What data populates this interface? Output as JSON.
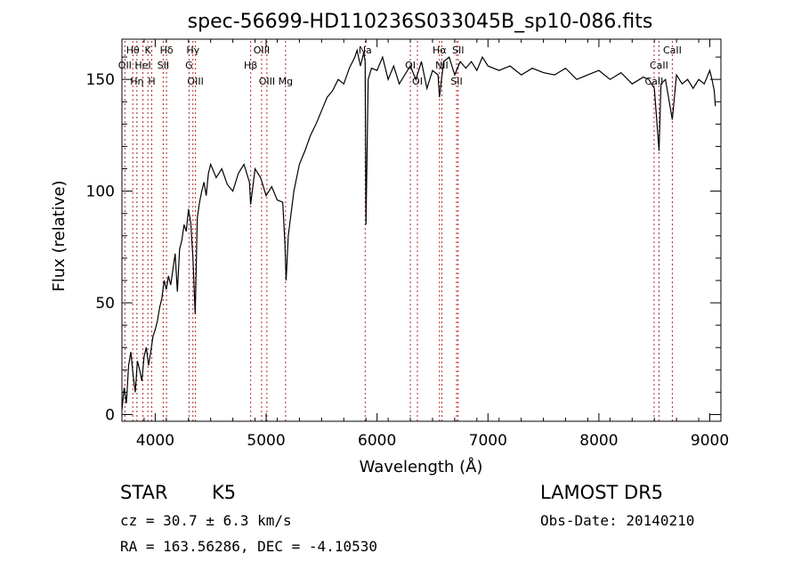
{
  "chart_data": {
    "type": "line",
    "title": "spec-56699-HD110236S033045B_sp10-086.fits",
    "xlabel": "Wavelength (Å)",
    "ylabel": "Flux (relative)",
    "xlim": [
      3700,
      9100
    ],
    "ylim": [
      -3,
      168
    ],
    "xticks": [
      4000,
      5000,
      6000,
      7000,
      8000,
      9000
    ],
    "yticks": [
      0,
      50,
      100,
      150
    ],
    "grid": false,
    "line_color": "#000000",
    "marker_color": "#b22222",
    "series": [
      {
        "x": [
          3700,
          3720,
          3740,
          3760,
          3780,
          3800,
          3820,
          3840,
          3860,
          3880,
          3900,
          3920,
          3940,
          3960,
          3980,
          4000,
          4020,
          4040,
          4060,
          4080,
          4100,
          4120,
          4140,
          4160,
          4180,
          4200,
          4220,
          4240,
          4260,
          4280,
          4300,
          4320,
          4340,
          4360,
          4380,
          4400,
          4420,
          4440,
          4460,
          4480,
          4500,
          4550,
          4600,
          4650,
          4700,
          4750,
          4800,
          4850,
          4860,
          4900,
          4950,
          5000,
          5050,
          5100,
          5150,
          5170,
          5180,
          5200,
          5250,
          5300,
          5350,
          5400,
          5450,
          5500,
          5550,
          5600,
          5650,
          5700,
          5750,
          5800,
          5820,
          5850,
          5880,
          5893,
          5900,
          5920,
          5950,
          6000,
          6050,
          6100,
          6150,
          6200,
          6250,
          6300,
          6350,
          6400,
          6450,
          6500,
          6550,
          6563,
          6600,
          6650,
          6700,
          6750,
          6800,
          6850,
          6900,
          6950,
          7000,
          7100,
          7200,
          7300,
          7400,
          7500,
          7600,
          7700,
          7800,
          7900,
          8000,
          8100,
          8200,
          8300,
          8400,
          8450,
          8500,
          8542,
          8560,
          8600,
          8662,
          8700,
          8750,
          8800,
          8850,
          8900,
          8950,
          9000,
          9020,
          9040,
          9050
        ],
        "y": [
          2,
          12,
          5,
          22,
          28,
          18,
          10,
          24,
          20,
          15,
          26,
          30,
          22,
          28,
          35,
          38,
          42,
          48,
          52,
          60,
          56,
          62,
          58,
          65,
          72,
          55,
          74,
          78,
          85,
          82,
          92,
          86,
          70,
          45,
          88,
          95,
          100,
          104,
          98,
          108,
          112,
          106,
          110,
          103,
          100,
          108,
          112,
          104,
          94,
          110,
          106,
          98,
          102,
          96,
          95,
          76,
          60,
          80,
          100,
          112,
          118,
          125,
          130,
          136,
          142,
          145,
          150,
          148,
          155,
          160,
          163,
          156,
          162,
          158,
          85,
          150,
          155,
          154,
          160,
          150,
          156,
          148,
          152,
          156,
          150,
          158,
          146,
          154,
          152,
          142,
          158,
          160,
          152,
          158,
          155,
          158,
          154,
          160,
          156,
          154,
          156,
          152,
          155,
          153,
          152,
          155,
          150,
          152,
          154,
          150,
          153,
          148,
          151,
          150,
          146,
          118,
          148,
          150,
          132,
          152,
          148,
          150,
          146,
          150,
          148,
          154,
          150,
          145,
          138
        ]
      }
    ],
    "lines": [
      {
        "name": "Hθ",
        "x": 3798
      },
      {
        "name": "OII",
        "x": 3727
      },
      {
        "name": "Hη",
        "x": 3835
      },
      {
        "name": "K",
        "x": 3934
      },
      {
        "name": "HeI",
        "x": 3889
      },
      {
        "name": "H",
        "x": 3969
      },
      {
        "name": "Hδ",
        "x": 4102
      },
      {
        "name": "SII",
        "x": 4072
      },
      {
        "name": "OIII",
        "x": 4363
      },
      {
        "name": "Hγ",
        "x": 4340
      },
      {
        "name": "G",
        "x": 4305
      },
      {
        "name": "OIII",
        "x": 5007
      },
      {
        "name": "OIII",
        "x": 4959
      },
      {
        "name": "Hβ",
        "x": 4861
      },
      {
        "name": "Mg",
        "x": 5175
      },
      {
        "name": "Na",
        "x": 5893
      },
      {
        "name": "OI",
        "x": 6300
      },
      {
        "name": "OI",
        "x": 6364
      },
      {
        "name": "Hα",
        "x": 6563
      },
      {
        "name": "NII",
        "x": 6584
      },
      {
        "name": "SII",
        "x": 6717
      },
      {
        "name": "SII",
        "x": 6731
      },
      {
        "name": "CaII",
        "x": 8542
      },
      {
        "name": "CaII",
        "x": 8498
      },
      {
        "name": "CaII",
        "x": 8662
      }
    ]
  },
  "info": {
    "object_class": "STAR",
    "subclass": "K5",
    "survey": "LAMOST DR5",
    "redshift": "cz = 30.7 ± 6.3 km/s",
    "obs_date": "Obs-Date: 20140210",
    "coords": "RA = 163.56286, DEC =  -4.10530"
  }
}
